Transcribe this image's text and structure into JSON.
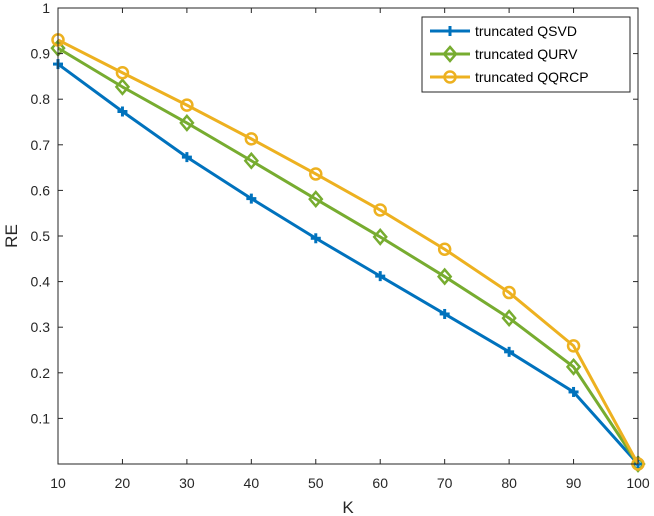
{
  "chart_data": {
    "type": "line",
    "title": "",
    "xlabel": "K",
    "ylabel": "RE",
    "xlim": [
      10,
      100
    ],
    "ylim": [
      0,
      1
    ],
    "xticks": [
      10,
      20,
      30,
      40,
      50,
      60,
      70,
      80,
      90,
      100
    ],
    "yticks": [
      0.1,
      0.2,
      0.3,
      0.4,
      0.5,
      0.6,
      0.7,
      0.8,
      0.9,
      1
    ],
    "grid": false,
    "legend_position": "top-right",
    "x": [
      10,
      20,
      30,
      40,
      50,
      60,
      70,
      80,
      90,
      100
    ],
    "series": [
      {
        "name": "truncated QSVD",
        "marker": "plus",
        "color": "#0072BD",
        "values": [
          0.877,
          0.773,
          0.673,
          0.582,
          0.495,
          0.412,
          0.329,
          0.246,
          0.158,
          0.0
        ]
      },
      {
        "name": "truncated QURV",
        "marker": "diamond",
        "color": "#77AC30",
        "values": [
          0.912,
          0.827,
          0.748,
          0.665,
          0.581,
          0.498,
          0.411,
          0.32,
          0.213,
          0.0
        ]
      },
      {
        "name": "truncated QQRCP",
        "marker": "circle",
        "color": "#EDB120",
        "values": [
          0.93,
          0.858,
          0.787,
          0.713,
          0.636,
          0.557,
          0.471,
          0.376,
          0.259,
          0.0
        ]
      }
    ]
  }
}
